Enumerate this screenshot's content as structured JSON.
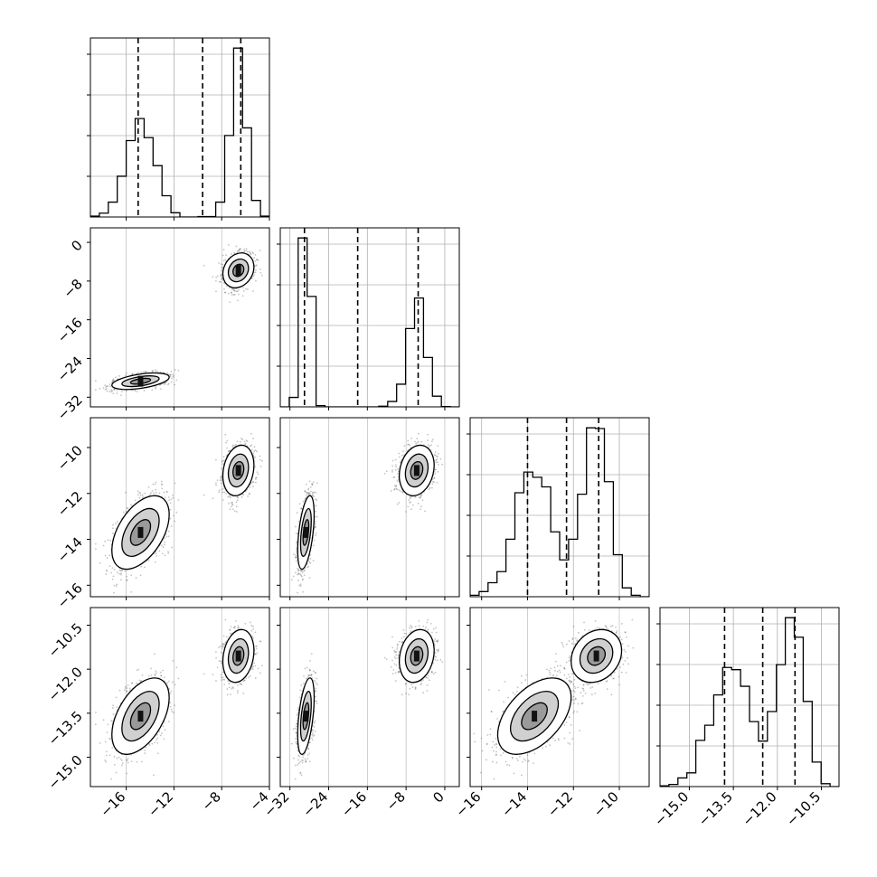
{
  "chart_data": {
    "type": "corner",
    "variables": [
      {
        "index": 0,
        "range": [
          -19,
          -4
        ],
        "ticks": [
          -16,
          -12,
          -8,
          -4
        ],
        "tick_labels": [
          "−16",
          "−12",
          "−8",
          "−4"
        ],
        "quantiles": [
          -15.0,
          -9.6,
          -6.4
        ],
        "hist_modes": [
          {
            "center": -14.8,
            "sigma": 1.2,
            "weight": 0.5
          },
          {
            "center": -6.6,
            "sigma": 0.65,
            "weight": 0.5
          }
        ]
      },
      {
        "index": 1,
        "range": [
          -34,
          3
        ],
        "ticks": [
          -32,
          -24,
          -16,
          -8,
          0
        ],
        "tick_labels": [
          "−32",
          "−24",
          "−16",
          "−8",
          "0"
        ],
        "quantiles": [
          -29.0,
          -18.0,
          -5.5
        ],
        "hist_modes": [
          {
            "center": -28.7,
            "sigma": 0.85,
            "weight": 0.5
          },
          {
            "center": -5.8,
            "sigma": 1.8,
            "weight": 0.5
          }
        ]
      },
      {
        "index": 2,
        "range": [
          -16.5,
          -8.7
        ],
        "ticks": [
          -16,
          -14,
          -12,
          -10
        ],
        "tick_labels": [
          "−16",
          "−14",
          "−12",
          "−10"
        ],
        "quantiles": [
          -14.0,
          -12.3,
          -10.9
        ],
        "hist_modes": [
          {
            "center": -13.7,
            "sigma": 0.8,
            "weight": 0.5
          },
          {
            "center": -11.0,
            "sigma": 0.55,
            "weight": 0.5
          }
        ]
      },
      {
        "index": 3,
        "range": [
          -16.0,
          -9.9
        ],
        "ticks": [
          -15.0,
          -13.5,
          -12.0,
          -10.5
        ],
        "tick_labels": [
          "−15.0",
          "−13.5",
          "−12.0",
          "−10.5"
        ],
        "quantiles": [
          -13.8,
          -12.5,
          -11.4
        ],
        "hist_modes": [
          {
            "center": -13.6,
            "sigma": 0.65,
            "weight": 0.5
          },
          {
            "center": -11.55,
            "sigma": 0.45,
            "weight": 0.5
          }
        ]
      }
    ],
    "row_tick_labels": {
      "1": [
        "0",
        "−8",
        "−16",
        "−24",
        "−32"
      ],
      "2": [
        "−10",
        "−12",
        "−14",
        "−16"
      ],
      "3": [
        "−10.5",
        "−12.0",
        "−13.5",
        "−15.0"
      ]
    },
    "row_ticks": {
      "1": [
        0,
        -8,
        -16,
        -24,
        -32
      ],
      "2": [
        -10,
        -12,
        -14,
        -16
      ],
      "3": [
        -10.5,
        -12.0,
        -13.5,
        -15.0
      ]
    },
    "modes_2d": {
      "a": [
        -14.8,
        -28.7,
        -13.7,
        -13.6
      ],
      "b": [
        -6.6,
        -5.8,
        -11.0,
        -11.55
      ]
    },
    "grid": true,
    "quantile_line_style": "dashed",
    "colors": {
      "hist": "#000000",
      "points": "#555555",
      "contour_fill": "#9a9a9a",
      "grid": "#b0b0b0"
    }
  }
}
